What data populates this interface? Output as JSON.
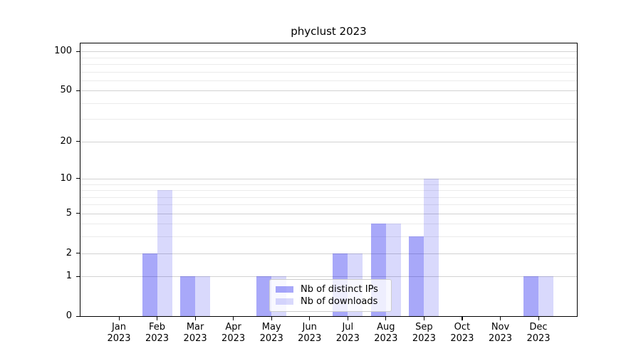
{
  "chart_data": {
    "type": "bar",
    "title": "phyclust 2023",
    "xlabel": "",
    "ylabel": "",
    "yscale": "log1p",
    "ylim": [
      0,
      115
    ],
    "grid": "horizontal, major and minor lines",
    "legend_position": "inside plot, lower center",
    "categories": [
      "Jan 2023",
      "Feb 2023",
      "Mar 2023",
      "Apr 2023",
      "May 2023",
      "Jun 2023",
      "Jul 2023",
      "Aug 2023",
      "Sep 2023",
      "Oct 2023",
      "Nov 2023",
      "Dec 2023"
    ],
    "series": [
      {
        "name": "Nb of distinct IPs",
        "color": "rgba(0,0,238,0.34)",
        "values": [
          0,
          2,
          1,
          0,
          1,
          0,
          2,
          4,
          3,
          0,
          0,
          1
        ]
      },
      {
        "name": "Nb of downloads",
        "color": "rgba(0,0,238,0.15)",
        "values": [
          0,
          8,
          1,
          0,
          1,
          0,
          2,
          4,
          10,
          0,
          0,
          1
        ]
      }
    ],
    "yticks_major": [
      0,
      1,
      2,
      5,
      10,
      20,
      50,
      100
    ],
    "yticks_minor": [
      3,
      4,
      6,
      7,
      8,
      9,
      30,
      40,
      60,
      70,
      80,
      90
    ]
  },
  "colors": {
    "bar_distinct_ips_on_white": "#a8a8f8",
    "bar_downloads_on_white": "#d8d8f8",
    "grid_major": "#d2d2d2",
    "grid_minor": "#ebebeb",
    "axis": "#000000",
    "background": "#ffffff",
    "legend_border": "#cccccc"
  }
}
